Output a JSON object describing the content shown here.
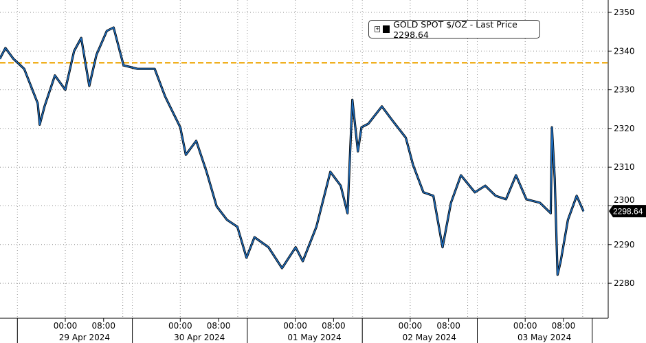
{
  "chart_data": {
    "type": "line",
    "title": "",
    "xlabel": "",
    "ylabel": "",
    "ylim": [
      2274,
      2353
    ],
    "yticks": [
      2280,
      2290,
      2300,
      2310,
      2320,
      2330,
      2340,
      2350
    ],
    "grid": true,
    "legend": {
      "placement": "top-right",
      "entry": "GOLD SPOT $/OZ - Last Price 2298.64",
      "icon": "expand-icon"
    },
    "last_price_label": "2298.64",
    "reference_line": {
      "value": 2337,
      "color": "#f0b020",
      "style": "dashed"
    },
    "colors": {
      "line": "#1f6fc0",
      "shadow": "#000000"
    },
    "x_time_labels": [
      "00:00",
      "08:00"
    ],
    "x_days": [
      {
        "label": "29 Apr 2024",
        "date": "2024-04-29"
      },
      {
        "label": "30 Apr 2024",
        "date": "2024-04-30"
      },
      {
        "label": "01 May 2024",
        "date": "2024-05-01"
      },
      {
        "label": "02 May 2024",
        "date": "2024-05-02"
      },
      {
        "label": "03 May 2024",
        "date": "2024-05-03"
      }
    ],
    "series": [
      {
        "name": "GOLD SPOT $/OZ",
        "points": [
          [
            "2024-04-28T10:20",
            2338
          ],
          [
            "2024-04-28T11:30",
            2340.8
          ],
          [
            "2024-04-28T13:10",
            2338
          ],
          [
            "2024-04-28T15:25",
            2335.4
          ],
          [
            "2024-04-28T18:15",
            2326.5
          ],
          [
            "2024-04-28T18:40",
            2321
          ],
          [
            "2024-04-28T19:40",
            2325.7
          ],
          [
            "2024-04-28T21:50",
            2333.7
          ],
          [
            "2024-04-29T00:00",
            2330
          ],
          [
            "2024-04-29T01:50",
            2340
          ],
          [
            "2024-04-29T03:20",
            2343.4
          ],
          [
            "2024-04-29T05:00",
            2331
          ],
          [
            "2024-04-29T06:30",
            2339
          ],
          [
            "2024-04-29T08:40",
            2345.2
          ],
          [
            "2024-04-29T10:05",
            2346.1
          ],
          [
            "2024-04-29T12:10",
            2336.3
          ],
          [
            "2024-04-29T15:05",
            2335.4
          ],
          [
            "2024-04-29T18:40",
            2335.4
          ],
          [
            "2024-04-29T20:50",
            2328.3
          ],
          [
            "2024-04-30T00:00",
            2320.3
          ],
          [
            "2024-04-30T01:10",
            2313.2
          ],
          [
            "2024-04-30T03:20",
            2316.8
          ],
          [
            "2024-04-30T05:30",
            2308.8
          ],
          [
            "2024-04-30T07:35",
            2299.9
          ],
          [
            "2024-04-30T09:45",
            2296.4
          ],
          [
            "2024-04-30T11:55",
            2294.6
          ],
          [
            "2024-04-30T13:50",
            2286.6
          ],
          [
            "2024-04-30T15:30",
            2291.9
          ],
          [
            "2024-04-30T18:25",
            2289.3
          ],
          [
            "2024-04-30T21:15",
            2283.9
          ],
          [
            "2024-05-01T00:05",
            2289.3
          ],
          [
            "2024-05-01T01:35",
            2285.7
          ],
          [
            "2024-05-01T04:25",
            2294.6
          ],
          [
            "2024-05-01T07:20",
            2308.8
          ],
          [
            "2024-05-01T09:30",
            2305.2
          ],
          [
            "2024-05-01T10:55",
            2298.1
          ],
          [
            "2024-05-01T11:55",
            2327.4
          ],
          [
            "2024-05-01T13:05",
            2314.1
          ],
          [
            "2024-05-01T13:50",
            2320.3
          ],
          [
            "2024-05-01T15:15",
            2321.2
          ],
          [
            "2024-05-01T18:05",
            2325.7
          ],
          [
            "2024-05-01T20:15",
            2322.1
          ],
          [
            "2024-05-01T23:05",
            2317.6
          ],
          [
            "2024-05-02T00:35",
            2310.6
          ],
          [
            "2024-05-02T02:45",
            2303.5
          ],
          [
            "2024-05-02T04:50",
            2302.6
          ],
          [
            "2024-05-02T06:45",
            2289.3
          ],
          [
            "2024-05-02T08:30",
            2300.8
          ],
          [
            "2024-05-02T10:35",
            2307.9
          ],
          [
            "2024-05-02T13:30",
            2303.5
          ],
          [
            "2024-05-02T15:40",
            2305.2
          ],
          [
            "2024-05-02T17:50",
            2302.6
          ],
          [
            "2024-05-02T20:00",
            2301.7
          ],
          [
            "2024-05-02T22:05",
            2307.9
          ],
          [
            "2024-05-03T00:15",
            2301.7
          ],
          [
            "2024-05-03T03:05",
            2300.8
          ],
          [
            "2024-05-03T05:20",
            2298.1
          ],
          [
            "2024-05-03T05:35",
            2320.3
          ],
          [
            "2024-05-03T06:10",
            2307
          ],
          [
            "2024-05-03T06:45",
            2282.2
          ],
          [
            "2024-05-03T07:25",
            2285.7
          ],
          [
            "2024-05-03T08:55",
            2296.4
          ],
          [
            "2024-05-03T10:45",
            2302.6
          ],
          [
            "2024-05-03T12:10",
            2298.64
          ]
        ]
      }
    ]
  }
}
